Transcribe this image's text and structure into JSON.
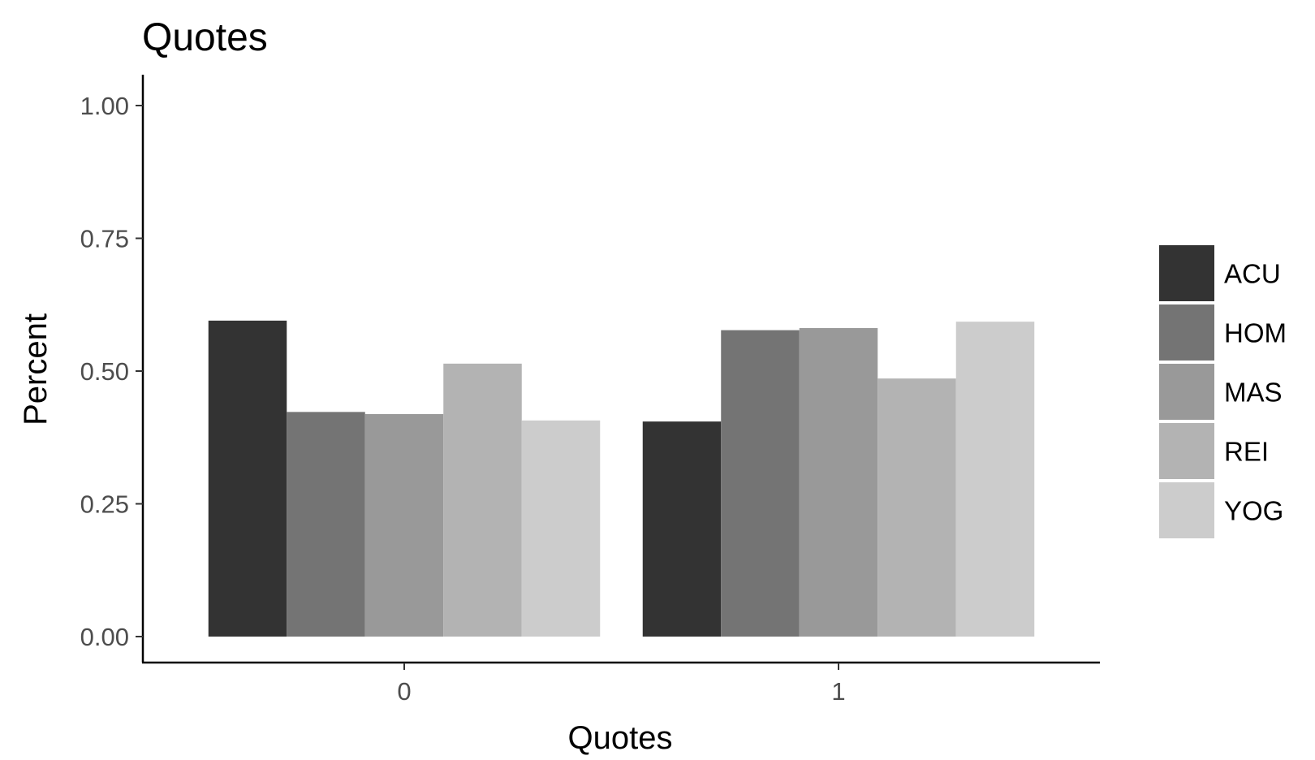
{
  "chart_data": {
    "type": "bar",
    "title": "Quotes",
    "xlabel": "Quotes",
    "ylabel": "Percent",
    "categories": [
      "0",
      "1"
    ],
    "ylim": [
      0,
      1.05
    ],
    "yticks": [
      0,
      0.25,
      0.5,
      0.75,
      1
    ],
    "ytick_labels": [
      "0.00",
      "0.25",
      "0.50",
      "0.75",
      "1.00"
    ],
    "grid": false,
    "legend_position": "right",
    "series": [
      {
        "name": "ACU",
        "color": "#333333",
        "values": [
          0.595,
          0.405
        ]
      },
      {
        "name": "HOM",
        "color": "#747474",
        "values": [
          0.423,
          0.577
        ]
      },
      {
        "name": "MAS",
        "color": "#999999",
        "values": [
          0.419,
          0.581
        ]
      },
      {
        "name": "REI",
        "color": "#b3b3b3",
        "values": [
          0.514,
          0.486
        ]
      },
      {
        "name": "YOG",
        "color": "#cccccc",
        "values": [
          0.407,
          0.593
        ]
      }
    ]
  }
}
